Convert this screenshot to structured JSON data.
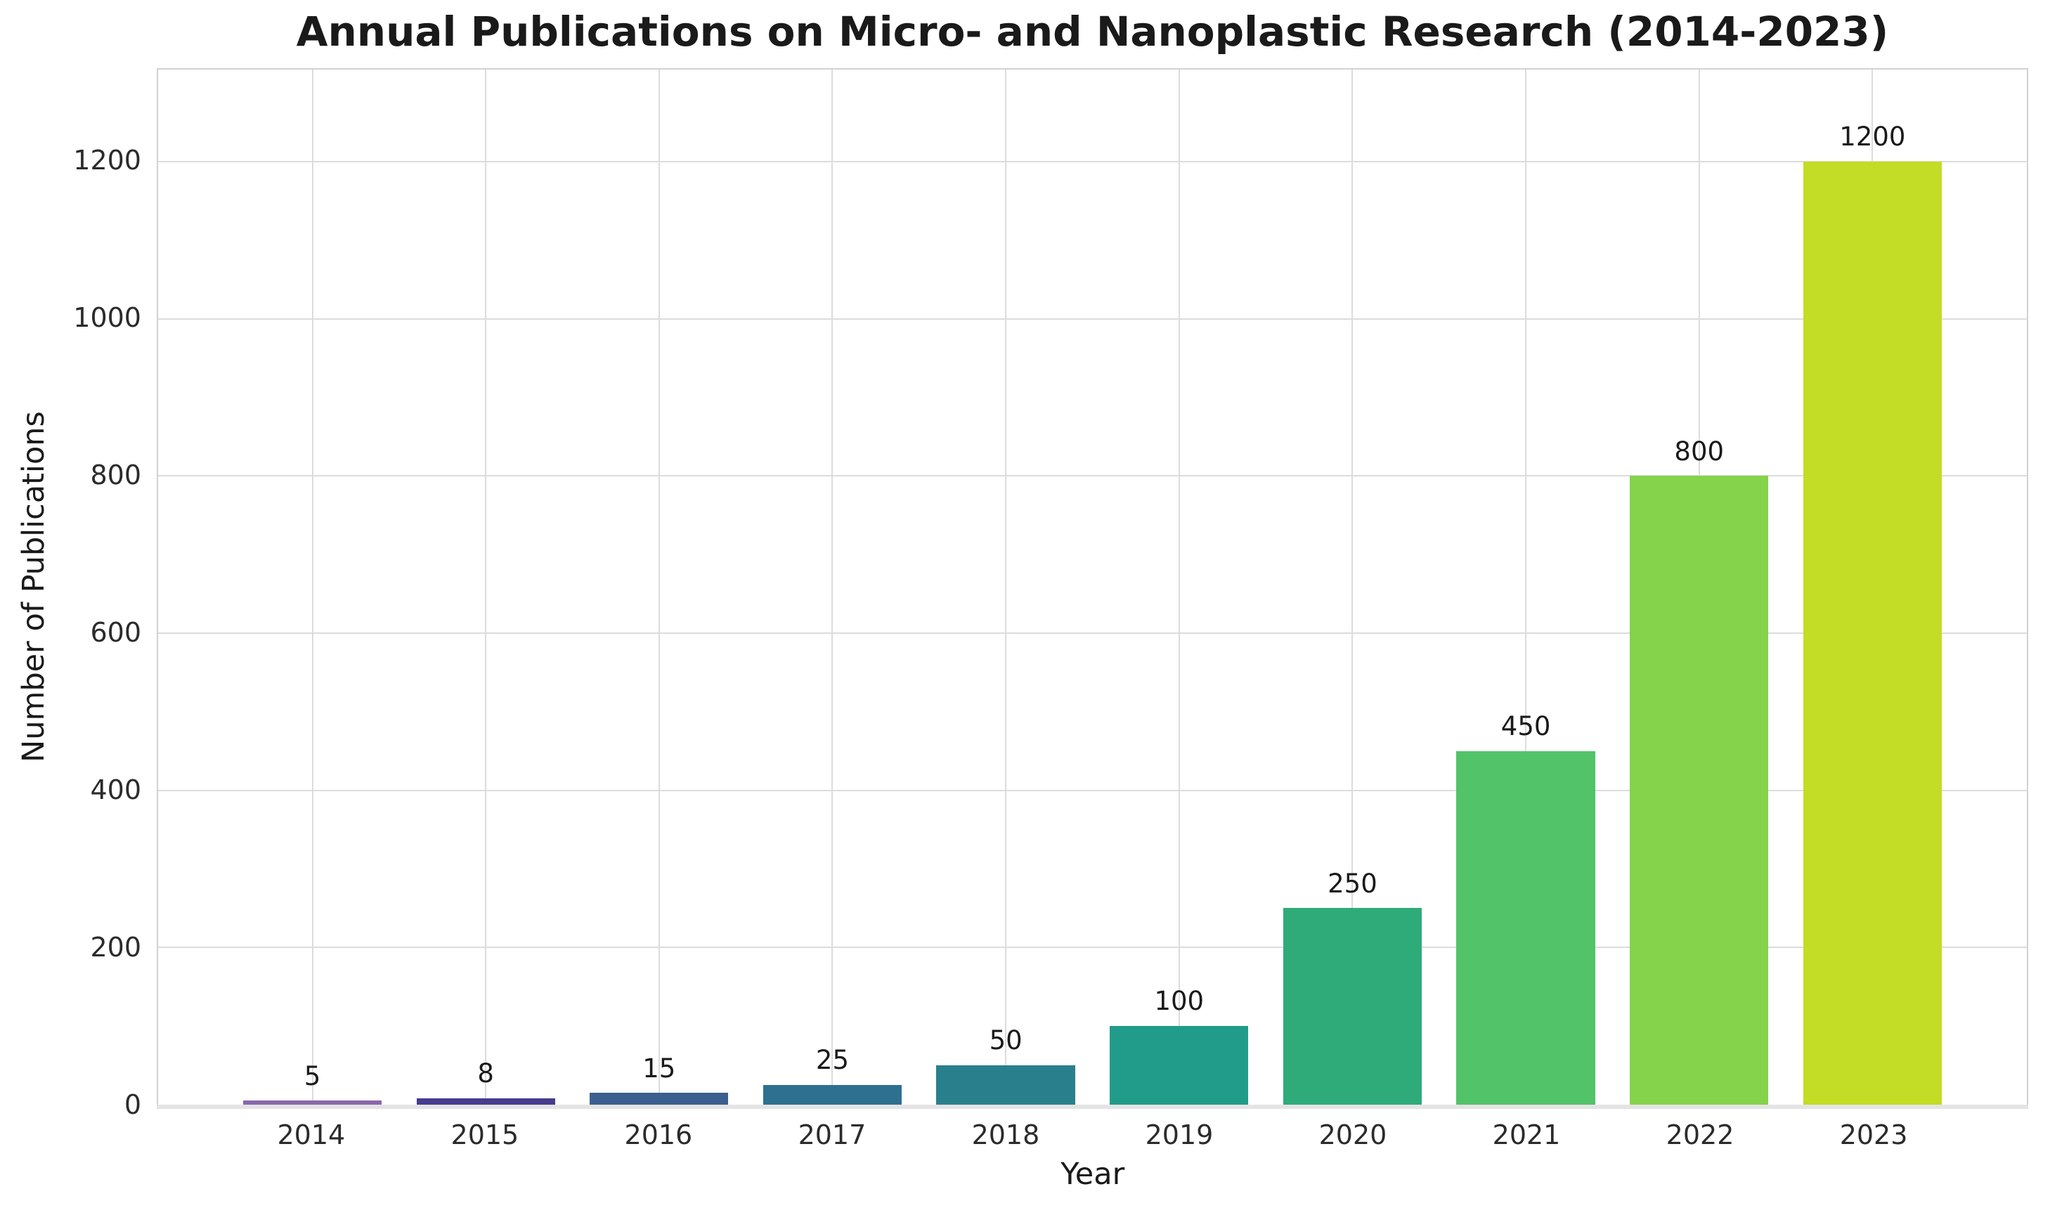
{
  "chart_data": {
    "type": "bar",
    "title": "Annual Publications on Micro- and Nanoplastic Research (2014-2023)",
    "xlabel": "Year",
    "ylabel": "Number of Publications",
    "categories": [
      "2014",
      "2015",
      "2016",
      "2017",
      "2018",
      "2019",
      "2020",
      "2021",
      "2022",
      "2023"
    ],
    "values": [
      5,
      8,
      15,
      25,
      50,
      100,
      250,
      450,
      800,
      1200
    ],
    "bar_value_labels": [
      "5",
      "8",
      "15",
      "25",
      "50",
      "100",
      "250",
      "450",
      "800",
      "1200"
    ],
    "bar_colors": [
      "#8a68ab",
      "#453c8f",
      "#3b5f8e",
      "#2e708f",
      "#29808c",
      "#219c8b",
      "#2eab79",
      "#52c369",
      "#85d24b",
      "#c3dc25"
    ],
    "yticks": [
      0,
      200,
      400,
      600,
      800,
      1000,
      1200
    ],
    "ylim": [
      0,
      1317
    ],
    "xlim": [
      -0.89,
      9.89
    ],
    "bar_width": 0.8,
    "grid": true,
    "legend_position": "none",
    "style": {
      "background": "#ffffff",
      "grid_color": "#dcdcdc",
      "frame_color": "#d2d2d2",
      "bottom_spine_color": "#e4e4e4",
      "title_color": "#1a1a1a",
      "tick_color": "#2b2b2b",
      "label_color": "#1a1a1a",
      "value_label_color": "#1a1a1a"
    }
  }
}
